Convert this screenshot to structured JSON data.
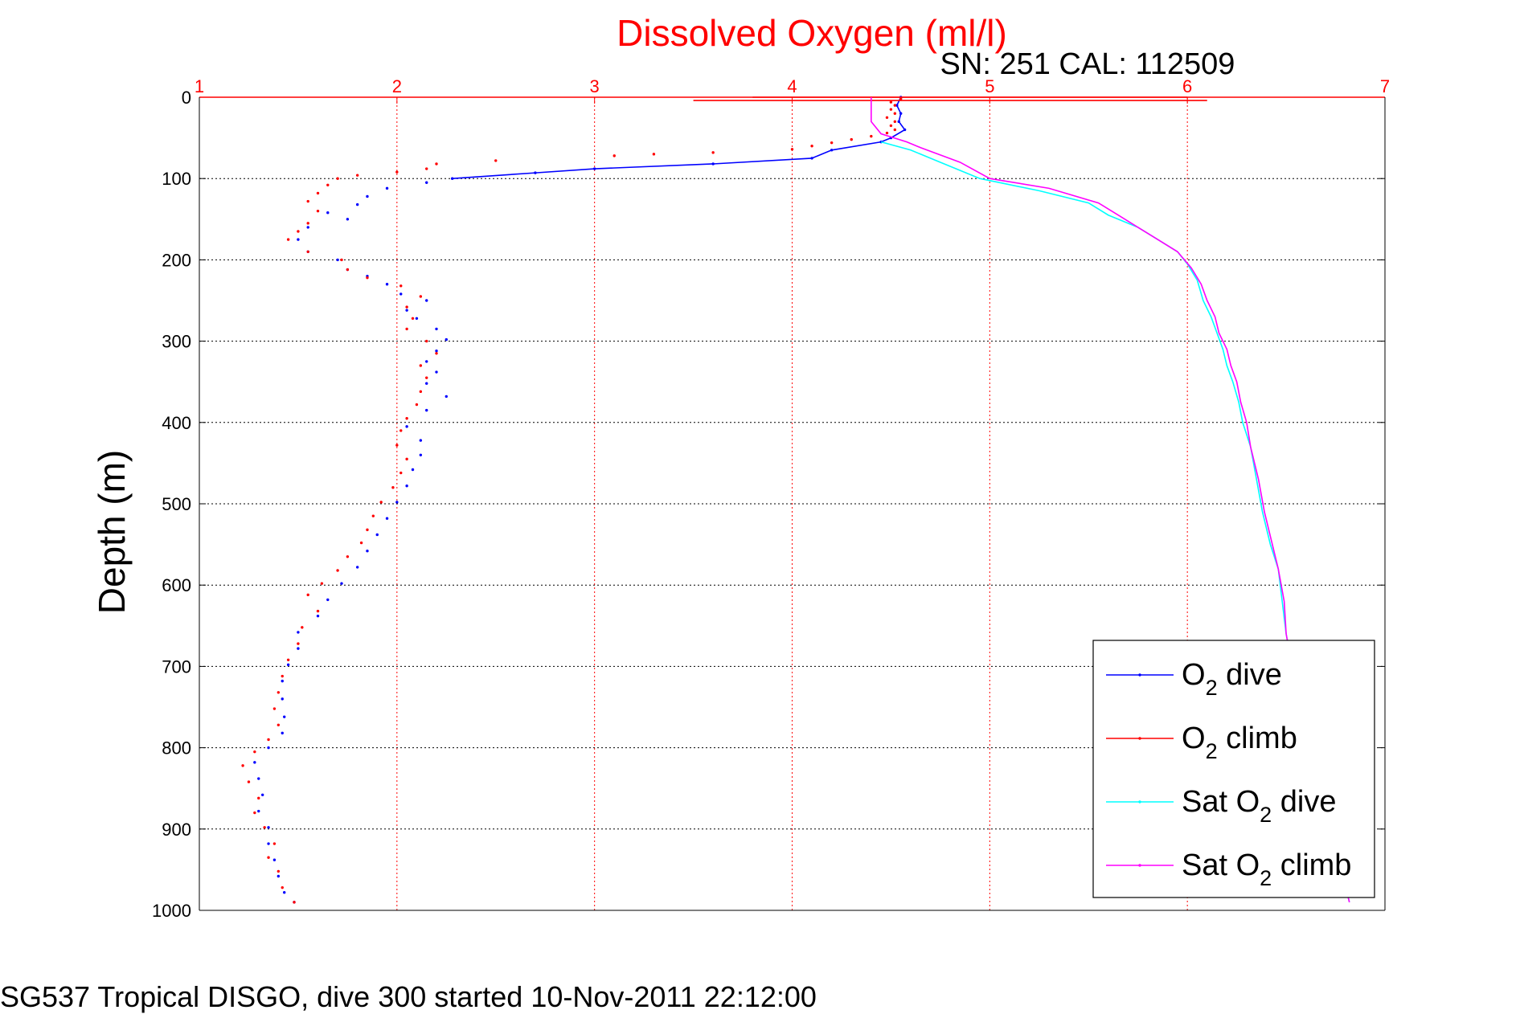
{
  "colors": {
    "axis_x": "#ff0000",
    "axis_y": "#000000",
    "grid_x": "#ff0000",
    "grid_y": "#000000",
    "o2_dive": "#0000ff",
    "o2_climb": "#ff0000",
    "sat_dive": "#00ffff",
    "sat_climb": "#ff00ff"
  },
  "chart_data": {
    "type": "scatter",
    "title": "Dissolved Oxygen (ml/l)",
    "subtitle": "SN: 251  CAL: 112509",
    "xlabel": "",
    "ylabel": "Depth (m)",
    "footer": "SG537 Tropical DISGO, dive 300 started 10-Nov-2011 22:12:00",
    "xlim": [
      1,
      7
    ],
    "ylim": [
      1000,
      0
    ],
    "xticks": [
      "1",
      "2",
      "3",
      "4",
      "5",
      "6",
      "7"
    ],
    "yticks": [
      "0",
      "100",
      "200",
      "300",
      "400",
      "500",
      "600",
      "700",
      "800",
      "900",
      "1000"
    ],
    "grid": true,
    "legend_position": "bottom-right",
    "legend": [
      {
        "prefix": "O",
        "sub": "2",
        "suffix": " dive",
        "color": "#0000ff"
      },
      {
        "prefix": "O",
        "sub": "2",
        "suffix": " climb",
        "color": "#ff0000"
      },
      {
        "prefix": "Sat O",
        "sub": "2",
        "suffix": " dive",
        "color": "#00ffff"
      },
      {
        "prefix": "Sat O",
        "sub": "2",
        "suffix": " climb",
        "color": "#ff00ff"
      }
    ],
    "series": [
      {
        "name": "O2 dive",
        "color": "#0000ff",
        "style": "line-dots",
        "points": [
          [
            4.55,
            0
          ],
          [
            4.53,
            10
          ],
          [
            4.55,
            20
          ],
          [
            4.54,
            30
          ],
          [
            4.57,
            40
          ],
          [
            4.5,
            50
          ],
          [
            4.45,
            55
          ],
          [
            4.2,
            65
          ],
          [
            4.1,
            75
          ],
          [
            3.6,
            82
          ],
          [
            3.0,
            88
          ],
          [
            2.7,
            93
          ],
          [
            2.28,
            100
          ]
        ]
      },
      {
        "name": "O2 dive",
        "color": "#0000ff",
        "style": "dots",
        "points": [
          [
            2.15,
            105
          ],
          [
            1.95,
            112
          ],
          [
            1.85,
            122
          ],
          [
            1.8,
            132
          ],
          [
            1.65,
            142
          ],
          [
            1.75,
            150
          ],
          [
            1.55,
            160
          ],
          [
            1.5,
            175
          ],
          [
            1.55,
            190
          ],
          [
            1.7,
            200
          ],
          [
            1.75,
            212
          ],
          [
            1.85,
            220
          ],
          [
            1.95,
            230
          ],
          [
            2.02,
            242
          ],
          [
            2.15,
            250
          ],
          [
            2.05,
            262
          ],
          [
            2.1,
            272
          ],
          [
            2.2,
            285
          ],
          [
            2.25,
            298
          ],
          [
            2.2,
            312
          ],
          [
            2.15,
            325
          ],
          [
            2.2,
            338
          ],
          [
            2.15,
            352
          ],
          [
            2.25,
            368
          ],
          [
            2.15,
            385
          ],
          [
            2.05,
            405
          ],
          [
            2.12,
            422
          ],
          [
            2.12,
            440
          ],
          [
            2.08,
            458
          ],
          [
            2.05,
            478
          ],
          [
            2.0,
            498
          ],
          [
            1.95,
            518
          ],
          [
            1.9,
            538
          ],
          [
            1.85,
            558
          ],
          [
            1.8,
            578
          ],
          [
            1.72,
            598
          ],
          [
            1.65,
            618
          ],
          [
            1.6,
            638
          ],
          [
            1.5,
            658
          ],
          [
            1.5,
            678
          ],
          [
            1.45,
            698
          ],
          [
            1.42,
            718
          ],
          [
            1.42,
            740
          ],
          [
            1.43,
            762
          ],
          [
            1.42,
            782
          ],
          [
            1.35,
            800
          ],
          [
            1.28,
            818
          ],
          [
            1.3,
            838
          ],
          [
            1.32,
            858
          ],
          [
            1.3,
            878
          ],
          [
            1.35,
            898
          ],
          [
            1.35,
            918
          ],
          [
            1.38,
            938
          ],
          [
            1.4,
            958
          ],
          [
            1.43,
            978
          ],
          [
            1.48,
            990
          ]
        ]
      },
      {
        "name": "O2 climb",
        "color": "#ff0000",
        "style": "dots",
        "points": [
          [
            1.48,
            990
          ],
          [
            1.42,
            972
          ],
          [
            1.4,
            952
          ],
          [
            1.35,
            935
          ],
          [
            1.38,
            918
          ],
          [
            1.33,
            898
          ],
          [
            1.28,
            880
          ],
          [
            1.3,
            862
          ],
          [
            1.25,
            842
          ],
          [
            1.22,
            822
          ],
          [
            1.28,
            805
          ],
          [
            1.35,
            790
          ],
          [
            1.4,
            772
          ],
          [
            1.38,
            752
          ],
          [
            1.4,
            732
          ],
          [
            1.42,
            712
          ],
          [
            1.45,
            692
          ],
          [
            1.5,
            672
          ],
          [
            1.52,
            652
          ],
          [
            1.6,
            632
          ],
          [
            1.55,
            612
          ],
          [
            1.62,
            598
          ],
          [
            1.7,
            582
          ],
          [
            1.75,
            565
          ],
          [
            1.82,
            548
          ],
          [
            1.85,
            532
          ],
          [
            1.88,
            515
          ],
          [
            1.92,
            498
          ],
          [
            1.98,
            480
          ],
          [
            2.02,
            462
          ],
          [
            2.05,
            445
          ],
          [
            2.0,
            428
          ],
          [
            2.02,
            410
          ],
          [
            2.05,
            395
          ],
          [
            2.1,
            378
          ],
          [
            2.12,
            362
          ],
          [
            2.15,
            345
          ],
          [
            2.12,
            330
          ],
          [
            2.2,
            315
          ],
          [
            2.15,
            300
          ],
          [
            2.05,
            285
          ],
          [
            2.08,
            272
          ],
          [
            2.05,
            258
          ],
          [
            2.12,
            245
          ],
          [
            2.02,
            232
          ],
          [
            1.85,
            222
          ],
          [
            1.75,
            212
          ],
          [
            1.72,
            200
          ],
          [
            1.55,
            190
          ],
          [
            1.45,
            175
          ],
          [
            1.5,
            165
          ],
          [
            1.55,
            155
          ],
          [
            1.6,
            140
          ],
          [
            1.55,
            128
          ],
          [
            1.6,
            118
          ],
          [
            1.65,
            108
          ],
          [
            1.7,
            100
          ],
          [
            1.8,
            96
          ],
          [
            2.0,
            92
          ],
          [
            2.15,
            88
          ],
          [
            2.2,
            82
          ],
          [
            2.5,
            78
          ],
          [
            3.1,
            72
          ],
          [
            3.3,
            70
          ],
          [
            3.6,
            68
          ],
          [
            4.0,
            64
          ],
          [
            4.1,
            60
          ],
          [
            4.2,
            56
          ],
          [
            4.3,
            52
          ],
          [
            4.4,
            48
          ],
          [
            4.48,
            44
          ],
          [
            4.52,
            40
          ],
          [
            4.5,
            35
          ],
          [
            4.52,
            30
          ],
          [
            4.48,
            25
          ],
          [
            4.52,
            20
          ],
          [
            4.5,
            15
          ],
          [
            4.52,
            10
          ],
          [
            4.5,
            6
          ],
          [
            4.55,
            2
          ]
        ]
      },
      {
        "name": "O2 climb",
        "color": "#ff0000",
        "style": "line",
        "points": [
          [
            3.8,
            0
          ],
          [
            4.0,
            0
          ],
          [
            4.3,
            0
          ],
          [
            4.6,
            0
          ],
          [
            5.0,
            0
          ],
          [
            5.5,
            0
          ],
          [
            6.0,
            0
          ]
        ]
      },
      {
        "name": "O2 climb",
        "color": "#ff0000",
        "style": "line",
        "points": [
          [
            3.5,
            4
          ],
          [
            4.3,
            4
          ],
          [
            4.6,
            4
          ],
          [
            5.2,
            4
          ],
          [
            6.1,
            4
          ]
        ]
      },
      {
        "name": "Sat O2 dive",
        "color": "#00ffff",
        "style": "line",
        "points": [
          [
            4.45,
            55
          ],
          [
            4.6,
            65
          ],
          [
            4.75,
            80
          ],
          [
            4.95,
            100
          ],
          [
            5.25,
            115
          ],
          [
            5.5,
            130
          ],
          [
            5.6,
            145
          ],
          [
            5.75,
            160
          ],
          [
            5.85,
            175
          ],
          [
            5.95,
            190
          ],
          [
            6.0,
            205
          ],
          [
            6.05,
            225
          ],
          [
            6.08,
            250
          ],
          [
            6.12,
            270
          ],
          [
            6.15,
            290
          ],
          [
            6.18,
            310
          ],
          [
            6.2,
            330
          ],
          [
            6.23,
            350
          ],
          [
            6.26,
            375
          ],
          [
            6.28,
            400
          ],
          [
            6.32,
            430
          ],
          [
            6.35,
            470
          ],
          [
            6.38,
            510
          ],
          [
            6.42,
            550
          ],
          [
            6.46,
            580
          ],
          [
            6.48,
            620
          ],
          [
            6.5,
            660
          ],
          [
            6.53,
            700
          ],
          [
            6.58,
            750
          ],
          [
            6.63,
            800
          ],
          [
            6.67,
            850
          ],
          [
            6.72,
            900
          ],
          [
            6.78,
            950
          ],
          [
            6.82,
            990
          ]
        ]
      },
      {
        "name": "Sat O2 climb",
        "color": "#ff00ff",
        "style": "line",
        "points": [
          [
            4.4,
            0
          ],
          [
            4.4,
            20
          ],
          [
            4.4,
            30
          ],
          [
            4.45,
            45
          ],
          [
            4.58,
            55
          ],
          [
            4.65,
            62
          ],
          [
            4.85,
            80
          ],
          [
            5.0,
            100
          ],
          [
            5.3,
            112
          ],
          [
            5.55,
            130
          ],
          [
            5.65,
            145
          ],
          [
            5.75,
            160
          ],
          [
            5.85,
            175
          ],
          [
            5.95,
            190
          ],
          [
            6.02,
            210
          ],
          [
            6.07,
            230
          ],
          [
            6.1,
            250
          ],
          [
            6.14,
            270
          ],
          [
            6.16,
            290
          ],
          [
            6.2,
            310
          ],
          [
            6.22,
            330
          ],
          [
            6.25,
            350
          ],
          [
            6.27,
            375
          ],
          [
            6.3,
            400
          ],
          [
            6.32,
            430
          ],
          [
            6.36,
            470
          ],
          [
            6.39,
            510
          ],
          [
            6.43,
            550
          ],
          [
            6.46,
            580
          ],
          [
            6.49,
            620
          ],
          [
            6.5,
            660
          ],
          [
            6.53,
            700
          ],
          [
            6.58,
            750
          ],
          [
            6.63,
            800
          ],
          [
            6.67,
            850
          ],
          [
            6.72,
            900
          ],
          [
            6.78,
            950
          ],
          [
            6.82,
            990
          ]
        ]
      }
    ]
  }
}
